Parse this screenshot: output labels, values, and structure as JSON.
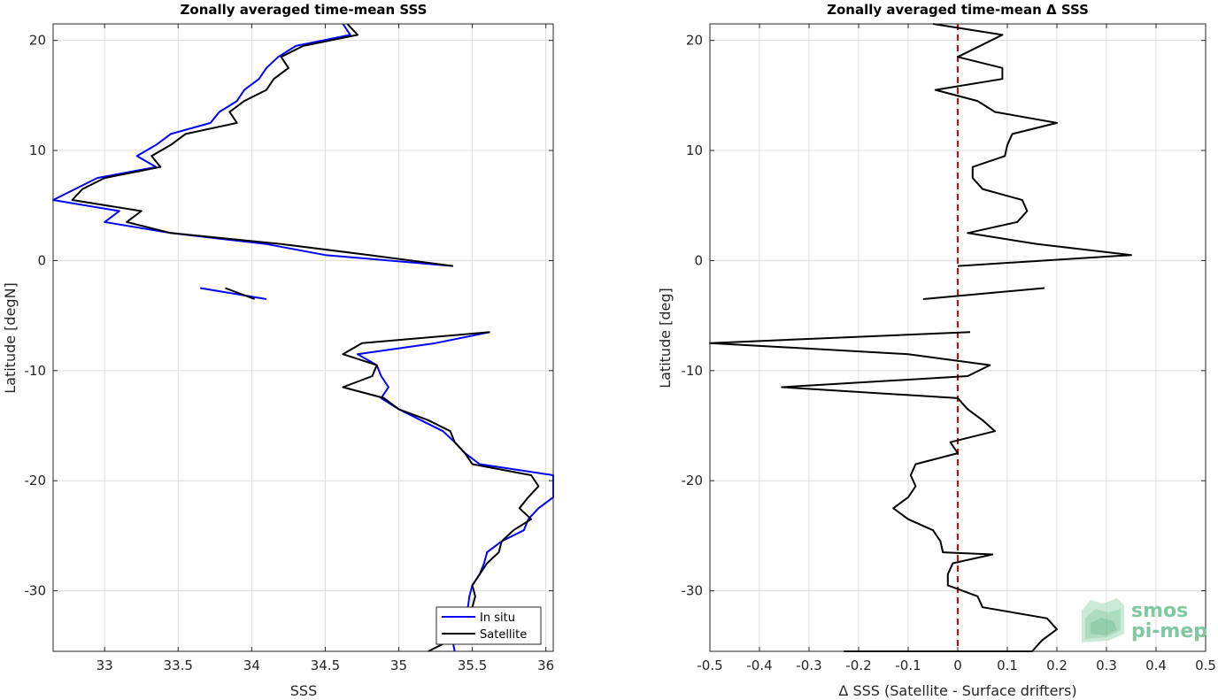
{
  "chart_data": [
    {
      "type": "line",
      "title": "Zonally averaged time-mean SSS",
      "xlabel": "SSS",
      "ylabel": "Latitude [degN]",
      "xlim": [
        32.65,
        36.05
      ],
      "ylim": [
        -35.5,
        21.5
      ],
      "xticks": [
        33,
        33.5,
        34,
        34.5,
        35,
        35.5,
        36
      ],
      "xtick_labels": [
        "33",
        "33.5",
        "34",
        "34.5",
        "35",
        "35.5",
        "36"
      ],
      "yticks": [
        -30,
        -20,
        -10,
        0,
        10,
        20
      ],
      "ytick_labels": [
        "-30",
        "-20",
        "-10",
        "0",
        "10",
        "20"
      ],
      "grid": true,
      "legend": {
        "location": "bottom-right",
        "entries": [
          "In situ",
          "Satellite"
        ]
      },
      "series": [
        {
          "name": "In situ",
          "color": "#0000ff",
          "segments": [
            [
              [
                34.62,
                21.5
              ],
              [
                34.67,
                20.5
              ],
              [
                34.3,
                19.5
              ],
              [
                34.18,
                18.5
              ],
              [
                34.1,
                17.5
              ],
              [
                34.05,
                16.5
              ],
              [
                33.95,
                15.5
              ],
              [
                33.9,
                14.5
              ],
              [
                33.78,
                13.5
              ],
              [
                33.72,
                12.5
              ],
              [
                33.45,
                11.5
              ],
              [
                33.35,
                10.5
              ],
              [
                33.22,
                9.5
              ],
              [
                33.35,
                8.5
              ],
              [
                32.95,
                7.5
              ],
              [
                32.8,
                6.5
              ],
              [
                32.65,
                5.5
              ],
              [
                33.1,
                4.5
              ],
              [
                33.0,
                3.5
              ],
              [
                33.45,
                2.5
              ],
              [
                34.1,
                1.5
              ],
              [
                34.5,
                0.5
              ],
              [
                35.37,
                -0.5
              ]
            ],
            [
              [
                33.65,
                -2.5
              ],
              [
                34.1,
                -3.5
              ]
            ],
            [
              [
                35.62,
                -6.5
              ],
              [
                35.25,
                -7.5
              ],
              [
                34.72,
                -8.5
              ],
              [
                34.85,
                -9.5
              ],
              [
                34.88,
                -10.5
              ],
              [
                34.93,
                -11.5
              ],
              [
                34.88,
                -12.5
              ],
              [
                35.0,
                -13.5
              ],
              [
                35.15,
                -14.5
              ],
              [
                35.3,
                -15.5
              ],
              [
                35.38,
                -16.5
              ],
              [
                35.45,
                -17.5
              ],
              [
                35.55,
                -18.5
              ],
              [
                36.05,
                -19.5
              ],
              [
                36.05,
                -20.5
              ],
              [
                36.05,
                -21.5
              ],
              [
                35.95,
                -22.5
              ],
              [
                35.88,
                -23.5
              ],
              [
                35.85,
                -24.5
              ],
              [
                35.7,
                -25.5
              ],
              [
                35.6,
                -26.5
              ],
              [
                35.58,
                -27.5
              ],
              [
                35.55,
                -28.5
              ],
              [
                35.5,
                -29.5
              ],
              [
                35.48,
                -30.5
              ],
              [
                35.47,
                -31.5
              ],
              [
                35.38,
                -32.5
              ],
              [
                35.35,
                -33.5
              ],
              [
                35.38,
                -35.5
              ]
            ]
          ]
        },
        {
          "name": "Satellite",
          "color": "#000000",
          "segments": [
            [
              [
                34.65,
                21.5
              ],
              [
                34.72,
                20.5
              ],
              [
                34.35,
                19.5
              ],
              [
                34.2,
                18.5
              ],
              [
                34.25,
                17.5
              ],
              [
                34.15,
                16.5
              ],
              [
                34.1,
                15.5
              ],
              [
                33.95,
                14.5
              ],
              [
                33.85,
                13.5
              ],
              [
                33.9,
                12.5
              ],
              [
                33.55,
                11.5
              ],
              [
                33.45,
                10.5
              ],
              [
                33.32,
                9.5
              ],
              [
                33.38,
                8.5
              ],
              [
                33.0,
                7.5
              ],
              [
                32.85,
                6.5
              ],
              [
                32.78,
                5.5
              ],
              [
                33.25,
                4.5
              ],
              [
                33.15,
                3.5
              ],
              [
                33.45,
                2.5
              ],
              [
                34.2,
                1.5
              ],
              [
                34.8,
                0.5
              ],
              [
                35.37,
                -0.5
              ]
            ],
            [
              [
                33.82,
                -2.5
              ],
              [
                34.02,
                -3.5
              ]
            ],
            [
              [
                35.62,
                -6.5
              ],
              [
                34.75,
                -7.5
              ],
              [
                34.62,
                -8.5
              ],
              [
                34.85,
                -9.5
              ],
              [
                34.82,
                -10.5
              ],
              [
                34.62,
                -11.5
              ],
              [
                34.9,
                -12.5
              ],
              [
                35.0,
                -13.5
              ],
              [
                35.2,
                -14.5
              ],
              [
                35.35,
                -15.5
              ],
              [
                35.38,
                -16.5
              ],
              [
                35.45,
                -17.5
              ],
              [
                35.5,
                -18.5
              ],
              [
                35.9,
                -19.5
              ],
              [
                35.95,
                -20.5
              ],
              [
                35.88,
                -21.5
              ],
              [
                35.82,
                -22.5
              ],
              [
                35.9,
                -23.5
              ],
              [
                35.78,
                -24.5
              ],
              [
                35.7,
                -25.5
              ],
              [
                35.68,
                -26.5
              ],
              [
                35.6,
                -27.5
              ],
              [
                35.55,
                -28.5
              ],
              [
                35.5,
                -29.5
              ],
              [
                35.52,
                -30.5
              ],
              [
                35.5,
                -31.5
              ],
              [
                35.5,
                -32.5
              ],
              [
                35.5,
                -33.5
              ],
              [
                35.2,
                -35.5
              ]
            ]
          ]
        }
      ]
    },
    {
      "type": "line",
      "title": "Zonally averaged time-mean Δ SSS",
      "xlabel": "Δ SSS (Satellite - Surface drifters)",
      "ylabel": "Latitude [deg]",
      "xlim": [
        -0.5,
        0.5
      ],
      "ylim": [
        -35.5,
        21.5
      ],
      "xticks": [
        -0.5,
        -0.4,
        -0.3,
        -0.2,
        -0.1,
        0,
        0.1,
        0.2,
        0.3,
        0.4,
        0.5
      ],
      "xtick_labels": [
        "-0.5",
        "-0.4",
        "-0.3",
        "-0.2",
        "-0.1",
        "0",
        "0.1",
        "0.2",
        "0.3",
        "0.4",
        "0.5"
      ],
      "yticks": [
        -30,
        -20,
        -10,
        0,
        10,
        20
      ],
      "ytick_labels": [
        "-30",
        "-20",
        "-10",
        "0",
        "10",
        "20"
      ],
      "grid": true,
      "reference_line": {
        "x": 0,
        "color": "#e00000",
        "style": "dashed"
      },
      "series": [
        {
          "color": "#000000",
          "segments": [
            [
              [
                -0.05,
                21.5
              ],
              [
                0.09,
                20.5
              ],
              [
                0.0,
                18.5
              ],
              [
                0.09,
                17.5
              ],
              [
                0.09,
                16.5
              ],
              [
                -0.045,
                15.5
              ],
              [
                0.04,
                14.5
              ],
              [
                0.075,
                13.5
              ],
              [
                0.2,
                12.5
              ],
              [
                0.11,
                11.5
              ],
              [
                0.1,
                10.5
              ],
              [
                0.095,
                9.5
              ],
              [
                0.03,
                8.5
              ],
              [
                0.03,
                7.5
              ],
              [
                0.05,
                6.5
              ],
              [
                0.13,
                5.5
              ],
              [
                0.14,
                4.5
              ],
              [
                0.12,
                3.5
              ],
              [
                0.02,
                2.5
              ],
              [
                0.16,
                1.5
              ],
              [
                0.35,
                0.5
              ],
              [
                0.0,
                -0.5
              ]
            ],
            [
              [
                0.175,
                -2.5
              ],
              [
                -0.07,
                -3.5
              ]
            ],
            [
              [
                0.025,
                -6.5
              ],
              [
                -0.5,
                -7.5
              ],
              [
                -0.1,
                -8.5
              ],
              [
                0.065,
                -9.5
              ],
              [
                0.02,
                -10.5
              ],
              [
                -0.355,
                -11.5
              ],
              [
                0.0,
                -12.5
              ],
              [
                0.02,
                -13.5
              ],
              [
                0.05,
                -14.5
              ],
              [
                0.075,
                -15.5
              ],
              [
                -0.015,
                -16.5
              ],
              [
                0.0,
                -17.5
              ],
              [
                -0.085,
                -18.5
              ],
              [
                -0.095,
                -19.5
              ],
              [
                -0.085,
                -20.5
              ],
              [
                -0.1,
                -21.5
              ],
              [
                -0.13,
                -22.5
              ],
              [
                -0.1,
                -23.5
              ],
              [
                -0.05,
                -24.5
              ],
              [
                -0.035,
                -25.5
              ],
              [
                -0.03,
                -26.5
              ],
              [
                0.07,
                -26.7
              ],
              [
                -0.01,
                -27.5
              ],
              [
                -0.02,
                -28.5
              ],
              [
                -0.02,
                -29.5
              ],
              [
                0.04,
                -30.5
              ],
              [
                0.05,
                -31.5
              ],
              [
                0.18,
                -32.5
              ],
              [
                0.2,
                -33.5
              ],
              [
                0.17,
                -34.5
              ],
              [
                0.15,
                -35.5
              ],
              [
                -0.23,
                -35.5
              ]
            ]
          ]
        }
      ]
    }
  ],
  "logo": {
    "line1": "smos",
    "line2": "pi-mep"
  }
}
